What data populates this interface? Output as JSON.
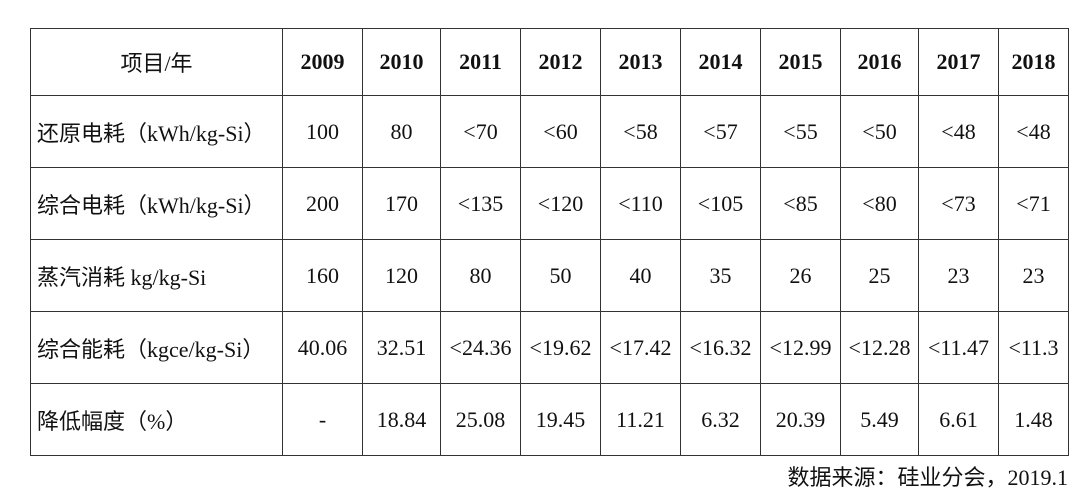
{
  "table": {
    "header": [
      "项目/年",
      "2009",
      "2010",
      "2011",
      "2012",
      "2013",
      "2014",
      "2015",
      "2016",
      "2017",
      "2018"
    ],
    "rows": [
      [
        "还原电耗（kWh/kg-Si）",
        "100",
        "80",
        "<70",
        "<60",
        "<58",
        "<57",
        "<55",
        "<50",
        "<48",
        "<48"
      ],
      [
        "综合电耗（kWh/kg-Si）",
        "200",
        "170",
        "<135",
        "<120",
        "<110",
        "<105",
        "<85",
        "<80",
        "<73",
        "<71"
      ],
      [
        "蒸汽消耗 kg/kg-Si",
        "160",
        "120",
        "80",
        "50",
        "40",
        "35",
        "26",
        "25",
        "23",
        "23"
      ],
      [
        "综合能耗（kgce/kg-Si）",
        "40.06",
        "32.51",
        "<24.36",
        "<19.62",
        "<17.42",
        "<16.32",
        "<12.99",
        "<12.28",
        "<11.47",
        "<11.3"
      ],
      [
        "降低幅度（%）",
        "-",
        "18.84",
        "25.08",
        "19.45",
        "11.21",
        "6.32",
        "20.39",
        "5.49",
        "6.61",
        "1.48"
      ]
    ]
  },
  "source": "数据来源：硅业分会，2019.1"
}
